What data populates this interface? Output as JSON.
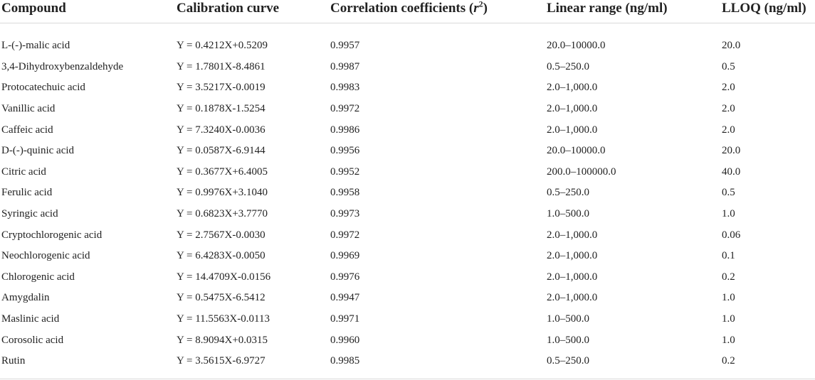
{
  "table": {
    "headers": {
      "compound": "Compound",
      "calibration": "Calibration curve",
      "correlation": "Correlation coefficients (",
      "correlation_var": "r",
      "correlation_sup": "2",
      "correlation_close": ")",
      "linear_range": "Linear range (ng/ml)",
      "lloq": "LLOQ (ng/ml)"
    },
    "rows": [
      {
        "compound": "L-(-)-malic acid",
        "curve": "Y = 0.4212X+0.5209",
        "r2": "0.9957",
        "range": "20.0–10000.0",
        "lloq": "20.0"
      },
      {
        "compound": "3,4-Dihydroxybenzaldehyde",
        "curve": "Y = 1.7801X-8.4861",
        "r2": "0.9987",
        "range": "0.5–250.0",
        "lloq": "0.5"
      },
      {
        "compound": "Protocatechuic acid",
        "curve": "Y = 3.5217X-0.0019",
        "r2": "0.9983",
        "range": "2.0–1,000.0",
        "lloq": "2.0"
      },
      {
        "compound": "Vanillic acid",
        "curve": "Y = 0.1878X-1.5254",
        "r2": "0.9972",
        "range": "2.0–1,000.0",
        "lloq": "2.0"
      },
      {
        "compound": "Caffeic acid",
        "curve": "Y = 7.3240X-0.0036",
        "r2": "0.9986",
        "range": "2.0–1,000.0",
        "lloq": "2.0"
      },
      {
        "compound": "D-(-)-quinic acid",
        "curve": "Y = 0.0587X-6.9144",
        "r2": "0.9956",
        "range": "20.0–10000.0",
        "lloq": "20.0"
      },
      {
        "compound": "Citric acid",
        "curve": "Y = 0.3677X+6.4005",
        "r2": "0.9952",
        "range": "200.0–100000.0",
        "lloq": "40.0"
      },
      {
        "compound": "Ferulic acid",
        "curve": "Y = 0.9976X+3.1040",
        "r2": "0.9958",
        "range": "0.5–250.0",
        "lloq": "0.5"
      },
      {
        "compound": "Syringic acid",
        "curve": "Y = 0.6823X+3.7770",
        "r2": "0.9973",
        "range": "1.0–500.0",
        "lloq": "1.0"
      },
      {
        "compound": "Cryptochlorogenic acid",
        "curve": "Y = 2.7567X-0.0030",
        "r2": "0.9972",
        "range": "2.0–1,000.0",
        "lloq": "0.06"
      },
      {
        "compound": "Neochlorogenic acid",
        "curve": "Y = 6.4283X-0.0050",
        "r2": "0.9969",
        "range": "2.0–1,000.0",
        "lloq": "0.1"
      },
      {
        "compound": "Chlorogenic acid",
        "curve": "Y = 14.4709X-0.0156",
        "r2": "0.9976",
        "range": "2.0–1,000.0",
        "lloq": "0.2"
      },
      {
        "compound": "Amygdalin",
        "curve": "Y = 0.5475X-6.5412",
        "r2": "0.9947",
        "range": "2.0–1,000.0",
        "lloq": "1.0"
      },
      {
        "compound": "Maslinic acid",
        "curve": "Y = 11.5563X-0.0113",
        "r2": "0.9971",
        "range": "1.0–500.0",
        "lloq": "1.0"
      },
      {
        "compound": "Corosolic acid",
        "curve": "Y = 8.9094X+0.0315",
        "r2": "0.9960",
        "range": "1.0–500.0",
        "lloq": "1.0"
      },
      {
        "compound": "Rutin",
        "curve": "Y = 3.5615X-6.9727",
        "r2": "0.9985",
        "range": "0.5–250.0",
        "lloq": "0.2"
      }
    ]
  }
}
